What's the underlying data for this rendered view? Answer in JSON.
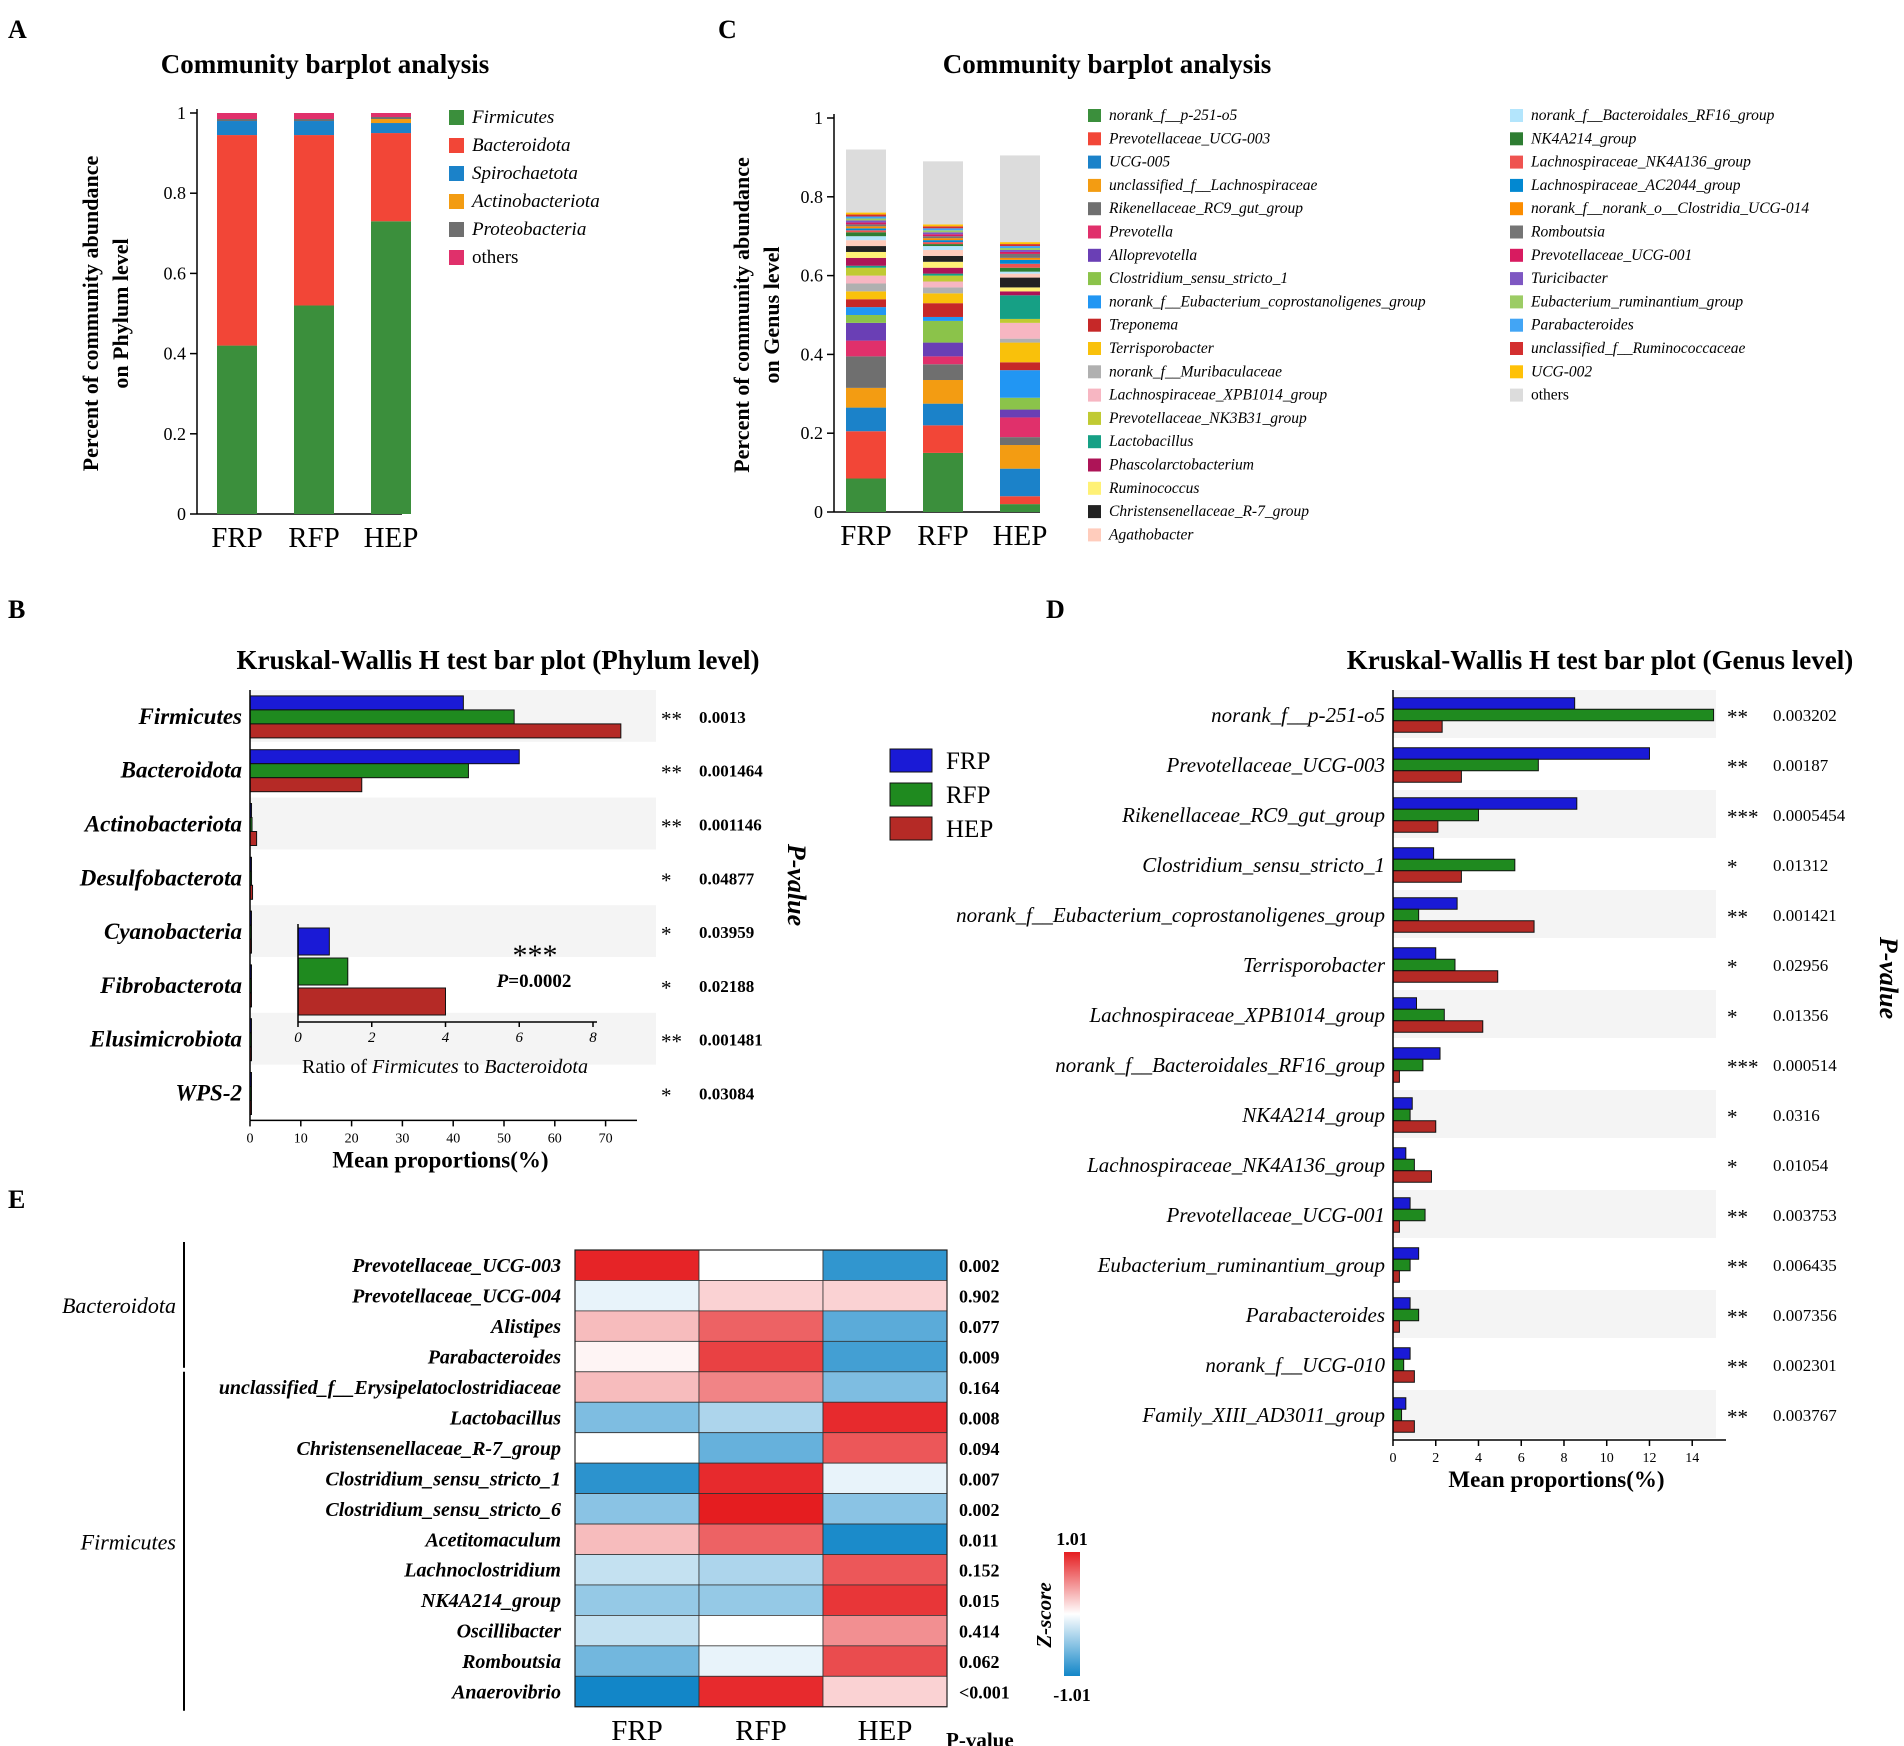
{
  "figure": {
    "panel_labels": [
      "A",
      "B",
      "C",
      "D",
      "E"
    ],
    "legend_groups": [
      "FRP",
      "RFP",
      "HEP"
    ],
    "legend_group_colors": [
      "#1a1ad6",
      "#1f8a1f",
      "#b52a26"
    ],
    "pvalue_label": "P-value"
  },
  "chart_data": [
    {
      "panel": "A",
      "type": "bar",
      "stacked": true,
      "title": "Community barplot analysis",
      "ylabel": "Percent of community abundance on Phylum level",
      "ylabel_lines": [
        "Percent of community abundance",
        "on Phylum level"
      ],
      "xlabel": "",
      "ylim": [
        0,
        1
      ],
      "yticks": [
        0,
        0.2,
        0.4,
        0.6,
        0.8,
        1
      ],
      "ytick_labels": [
        "0",
        "0.2",
        "0.4",
        "0.6",
        "0.8",
        "1"
      ],
      "categories": [
        "FRP",
        "RFP",
        "HEP"
      ],
      "series": [
        {
          "name": "Firmicutes",
          "color": "#3b8f3c",
          "values": [
            0.42,
            0.52,
            0.73
          ]
        },
        {
          "name": "Bacteroidota",
          "color": "#f24637",
          "values": [
            0.525,
            0.425,
            0.22
          ]
        },
        {
          "name": "Spirochaetota",
          "color": "#1b82c9",
          "values": [
            0.035,
            0.035,
            0.025
          ]
        },
        {
          "name": "Actinobacteriota",
          "color": "#f39c12",
          "values": [
            0.0,
            0.0,
            0.01
          ]
        },
        {
          "name": "Proteobacteria",
          "color": "#6f6f6f",
          "values": [
            0.005,
            0.005,
            0.005
          ]
        },
        {
          "name": "others",
          "color": "#e0306b",
          "values": [
            0.015,
            0.015,
            0.01
          ]
        }
      ]
    },
    {
      "panel": "C",
      "type": "bar",
      "stacked": true,
      "title": "Community barplot analysis",
      "ylabel": "Percent of community abundance on Genus level",
      "ylabel_lines": [
        "Percent of community abundance",
        "on Genus level"
      ],
      "xlabel": "",
      "ylim": [
        0,
        1
      ],
      "yticks": [
        0,
        0.2,
        0.4,
        0.6,
        0.8,
        1
      ],
      "ytick_labels": [
        "0",
        "0.2",
        "0.4",
        "0.6",
        "0.8",
        "1"
      ],
      "categories": [
        "FRP",
        "RFP",
        "HEP"
      ],
      "series": [
        {
          "name": "norank_f__p-251-o5",
          "color": "#3b8f3c",
          "values": [
            0.085,
            0.15,
            0.02
          ]
        },
        {
          "name": "Prevotellaceae_UCG-003",
          "color": "#f24637",
          "values": [
            0.12,
            0.07,
            0.02
          ]
        },
        {
          "name": "UCG-005",
          "color": "#1b82c9",
          "values": [
            0.06,
            0.055,
            0.07
          ]
        },
        {
          "name": "unclassified_f__Lachnospiraceae",
          "color": "#f39c12",
          "values": [
            0.05,
            0.06,
            0.06
          ]
        },
        {
          "name": "Rikenellaceae_RC9_gut_group",
          "color": "#6f6f6f",
          "values": [
            0.08,
            0.04,
            0.02
          ]
        },
        {
          "name": "Prevotella",
          "color": "#e0306b",
          "values": [
            0.04,
            0.02,
            0.05
          ]
        },
        {
          "name": "Alloprevotella",
          "color": "#6a3fb5",
          "values": [
            0.045,
            0.035,
            0.02
          ]
        },
        {
          "name": "Clostridium_sensu_stricto_1",
          "color": "#8bc34a",
          "values": [
            0.02,
            0.055,
            0.03
          ]
        },
        {
          "name": "norank_f__Eubacterium_coprostanoligenes_group",
          "color": "#2196f3",
          "values": [
            0.02,
            0.01,
            0.07
          ]
        },
        {
          "name": "Treponema",
          "color": "#c62828",
          "values": [
            0.02,
            0.035,
            0.02
          ]
        },
        {
          "name": "Terrisporobacter",
          "color": "#f9c10b",
          "values": [
            0.02,
            0.025,
            0.05
          ]
        },
        {
          "name": "norank_f__Muribaculaceae",
          "color": "#b0b0b0",
          "values": [
            0.02,
            0.015,
            0.01
          ]
        },
        {
          "name": "Lachnospiraceae_XPB1014_group",
          "color": "#f7b6c2",
          "values": [
            0.02,
            0.015,
            0.04
          ]
        },
        {
          "name": "Prevotellaceae_NK3B31_group",
          "color": "#c0ca33",
          "values": [
            0.02,
            0.015,
            0.01
          ]
        },
        {
          "name": "Lactobacillus",
          "color": "#16a085",
          "values": [
            0.005,
            0.005,
            0.06
          ]
        },
        {
          "name": "Phascolarctobacterium",
          "color": "#ad1457",
          "values": [
            0.02,
            0.015,
            0.01
          ]
        },
        {
          "name": "Ruminococcus",
          "color": "#fff176",
          "values": [
            0.015,
            0.015,
            0.01
          ]
        },
        {
          "name": "Christensenellaceae_R-7_group",
          "color": "#222222",
          "values": [
            0.015,
            0.015,
            0.025
          ]
        },
        {
          "name": "Agathobacter",
          "color": "#ffccbc",
          "values": [
            0.015,
            0.015,
            0.01
          ]
        },
        {
          "name": "norank_f__Bacteroidales_RF16_group",
          "color": "#b3e5fc",
          "values": [
            0.01,
            0.01,
            0.005
          ]
        },
        {
          "name": "NK4A214_group",
          "color": "#2e7d32",
          "values": [
            0.01,
            0.005,
            0.01
          ]
        },
        {
          "name": "Lachnospiraceae_NK4A136_group",
          "color": "#ef5350",
          "values": [
            0.005,
            0.005,
            0.01
          ]
        },
        {
          "name": "Lachnospiraceae_AC2044_group",
          "color": "#0288d1",
          "values": [
            0.005,
            0.005,
            0.01
          ]
        },
        {
          "name": "norank_f__norank_o__Clostridia_UCG-014",
          "color": "#fb8c00",
          "values": [
            0.005,
            0.005,
            0.005
          ]
        },
        {
          "name": "Romboutsia",
          "color": "#757575",
          "values": [
            0.005,
            0.005,
            0.01
          ]
        },
        {
          "name": "Prevotellaceae_UCG-001",
          "color": "#d81b60",
          "values": [
            0.005,
            0.005,
            0.005
          ]
        },
        {
          "name": "Turicibacter",
          "color": "#7e57c2",
          "values": [
            0.005,
            0.005,
            0.005
          ]
        },
        {
          "name": "Eubacterium_ruminantium_group",
          "color": "#9ccc65",
          "values": [
            0.005,
            0.005,
            0.005
          ]
        },
        {
          "name": "Parabacteroides",
          "color": "#42a5f5",
          "values": [
            0.005,
            0.005,
            0.005
          ]
        },
        {
          "name": "unclassified_f__Ruminococcaceae",
          "color": "#d32f2f",
          "values": [
            0.005,
            0.005,
            0.005
          ]
        },
        {
          "name": "UCG-002",
          "color": "#ffc107",
          "values": [
            0.005,
            0.005,
            0.005
          ]
        },
        {
          "name": "others",
          "color": "#dcdcdc",
          "values": [
            0.16,
            0.16,
            0.22
          ]
        }
      ]
    },
    {
      "panel": "B",
      "type": "bar",
      "orientation": "horizontal",
      "title": "Kruskal-Wallis H test bar plot (Phylum level)",
      "xlabel": "Mean proportions(%)",
      "xlim": [
        0,
        75
      ],
      "xticks": [
        0,
        10,
        20,
        30,
        40,
        50,
        60,
        70
      ],
      "categories": [
        "Firmicutes",
        "Bacteroidota",
        "Actinobacteriota",
        "Desulfobacterota",
        "Cyanobacteria",
        "Fibrobacterota",
        "Elusimicrobiota",
        "WPS-2"
      ],
      "series": [
        {
          "name": "FRP",
          "values": [
            42,
            53,
            0.3,
            0.2,
            0.05,
            0.05,
            0.1,
            0.05
          ]
        },
        {
          "name": "RFP",
          "values": [
            52,
            43,
            0.4,
            0.3,
            0.05,
            0.05,
            0.05,
            0.05
          ]
        },
        {
          "name": "HEP",
          "values": [
            73,
            22,
            1.3,
            0.5,
            0.05,
            0.05,
            0.05,
            0.05
          ]
        }
      ],
      "significance": [
        "**",
        "**",
        "**",
        "*",
        "*",
        "*",
        "**",
        "*"
      ],
      "pvalues": [
        "0.0013",
        "0.001464",
        "0.001146",
        "0.04877",
        "0.03959",
        "0.02188",
        "0.001481",
        "0.03084"
      ],
      "inset": {
        "type": "bar",
        "orientation": "horizontal",
        "xlabel": "Ratio of Firmicutes to Bacteroidota",
        "xlabel_parts": [
          "Ratio of ",
          "Firmicutes",
          " to ",
          "Bacteroidota"
        ],
        "xlim": [
          0,
          8
        ],
        "xticks": [
          0,
          2,
          4,
          6,
          8
        ],
        "categories": [
          "FRP",
          "RFP",
          "HEP"
        ],
        "values": [
          0.85,
          1.35,
          4.0
        ],
        "significance": "***",
        "pvalue_text": "P=0.0002",
        "pvalue_prefix": "P",
        "pvalue_suffix": "=0.0002"
      }
    },
    {
      "panel": "D",
      "type": "bar",
      "orientation": "horizontal",
      "title": "Kruskal-Wallis H test bar plot (Genus level)",
      "xlabel": "Mean proportions(%)",
      "xlim": [
        0,
        15.3
      ],
      "xticks": [
        0,
        2,
        4,
        6,
        8,
        10,
        12,
        14
      ],
      "categories": [
        "norank_f__p-251-o5",
        "Prevotellaceae_UCG-003",
        "Rikenellaceae_RC9_gut_group",
        "Clostridium_sensu_stricto_1",
        "norank_f__Eubacterium_coprostanoligenes_group",
        "Terrisporobacter",
        "Lachnospiraceae_XPB1014_group",
        "norank_f__Bacteroidales_RF16_group",
        "NK4A214_group",
        "Lachnospiraceae_NK4A136_group",
        "Prevotellaceae_UCG-001",
        "Eubacterium_ruminantium_group",
        "Parabacteroides",
        "norank_f__UCG-010",
        "Family_XIII_AD3011_group"
      ],
      "series": [
        {
          "name": "FRP",
          "values": [
            8.5,
            12.0,
            8.6,
            1.9,
            3.0,
            2.0,
            1.1,
            2.2,
            0.9,
            0.6,
            0.8,
            1.2,
            0.8,
            0.8,
            0.6
          ]
        },
        {
          "name": "RFP",
          "values": [
            15.0,
            6.8,
            4.0,
            5.7,
            1.2,
            2.9,
            2.4,
            1.4,
            0.8,
            1.0,
            1.5,
            0.8,
            1.2,
            0.5,
            0.4
          ]
        },
        {
          "name": "HEP",
          "values": [
            2.3,
            3.2,
            2.1,
            3.2,
            6.6,
            4.9,
            4.2,
            0.3,
            2.0,
            1.8,
            0.3,
            0.3,
            0.3,
            1.0,
            1.0
          ]
        }
      ],
      "significance": [
        "**",
        "**",
        "***",
        "*",
        "**",
        "*",
        "*",
        "***",
        "*",
        "*",
        "**",
        "**",
        "**",
        "**",
        "**"
      ],
      "pvalues": [
        "0.003202",
        "0.00187",
        "0.0005454",
        "0.01312",
        "0.001421",
        "0.02956",
        "0.01356",
        "0.000514",
        "0.0316",
        "0.01054",
        "0.003753",
        "0.006435",
        "0.007356",
        "0.002301",
        "0.003767"
      ]
    },
    {
      "panel": "E",
      "type": "heatmap",
      "columns": [
        "FRP",
        "RFP",
        "HEP"
      ],
      "pvalue_header": "P-value",
      "groups": [
        {
          "name": "Bacteroidota",
          "rows": [
            0,
            1,
            2,
            3
          ]
        },
        {
          "name": "Firmicutes",
          "rows": [
            4,
            5,
            6,
            7,
            8,
            9,
            10,
            11,
            12,
            13,
            14
          ]
        }
      ],
      "rows": [
        "Prevotellaceae_UCG-003",
        "Prevotellaceae_UCG-004",
        "Alistipes",
        "Parabacteroides",
        "unclassified_f__Erysipelatoclostridiaceae",
        "Lactobacillus",
        "Christensenellaceae_R-7_group",
        "Clostridium_sensu_stricto_1",
        "Clostridium_sensu_stricto_6",
        "Acetitomaculum",
        "Lachnoclostridium",
        "NK4A214_group",
        "Oscillibacter",
        "Romboutsia",
        "Anaerovibrio"
      ],
      "values": [
        [
          0.98,
          0.0,
          -0.88
        ],
        [
          -0.1,
          0.2,
          0.2
        ],
        [
          0.3,
          0.7,
          -0.7
        ],
        [
          0.05,
          0.85,
          -0.8
        ],
        [
          0.3,
          0.55,
          -0.55
        ],
        [
          -0.55,
          -0.35,
          0.95
        ],
        [
          0.0,
          -0.65,
          0.75
        ],
        [
          -0.9,
          0.95,
          -0.1
        ],
        [
          -0.5,
          1.01,
          -0.5
        ],
        [
          0.3,
          0.7,
          -0.97
        ],
        [
          -0.25,
          -0.35,
          0.75
        ],
        [
          -0.45,
          -0.45,
          0.9
        ],
        [
          -0.25,
          0.0,
          0.5
        ],
        [
          -0.6,
          -0.1,
          0.8
        ],
        [
          -1.01,
          0.95,
          0.2
        ]
      ],
      "pvalues": [
        "0.002",
        "0.902",
        "0.077",
        "0.009",
        "0.164",
        "0.008",
        "0.094",
        "0.007",
        "0.002",
        "0.011",
        "0.152",
        "0.015",
        "0.414",
        "0.062",
        "<0.001"
      ],
      "pvalue_significant": [
        true,
        false,
        true,
        true,
        false,
        true,
        true,
        true,
        true,
        true,
        false,
        true,
        false,
        true,
        true
      ],
      "colorbar": {
        "label": "Z-score",
        "min": -1.01,
        "max": 1.01,
        "min_label": "-1.01",
        "max_label": "1.01"
      }
    }
  ]
}
